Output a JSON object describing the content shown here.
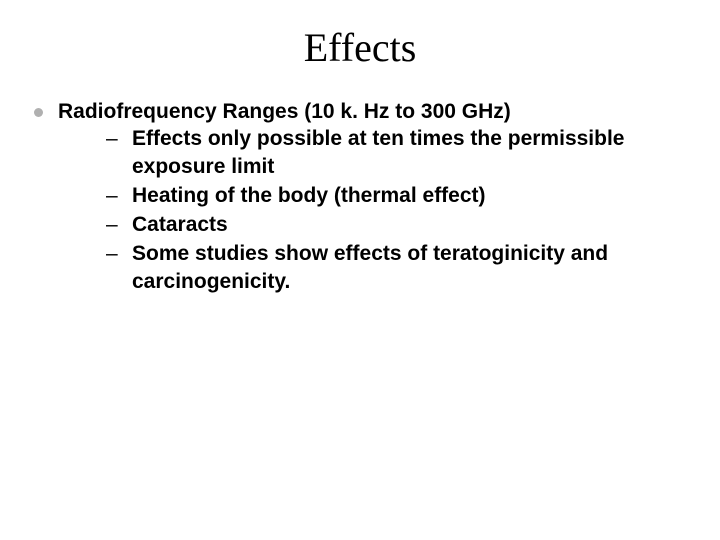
{
  "title": "Effects",
  "lvl1": {
    "text": "Radiofrequency Ranges (10 k. Hz to 300 GHz)"
  },
  "lvl2": [
    "Effects only possible at ten times the permissible exposure limit",
    "Heating of the body (thermal effect)",
    "Cataracts",
    "Some studies show effects of teratoginicity and carcinogenicity."
  ],
  "colors": {
    "background": "#ffffff",
    "text": "#000000",
    "bullet_lvl1": "#b0b0b0"
  },
  "typography": {
    "title_font": "Times New Roman",
    "title_size_pt": 40,
    "body_font": "Arial",
    "body_size_pt": 21,
    "body_weight": "bold"
  }
}
